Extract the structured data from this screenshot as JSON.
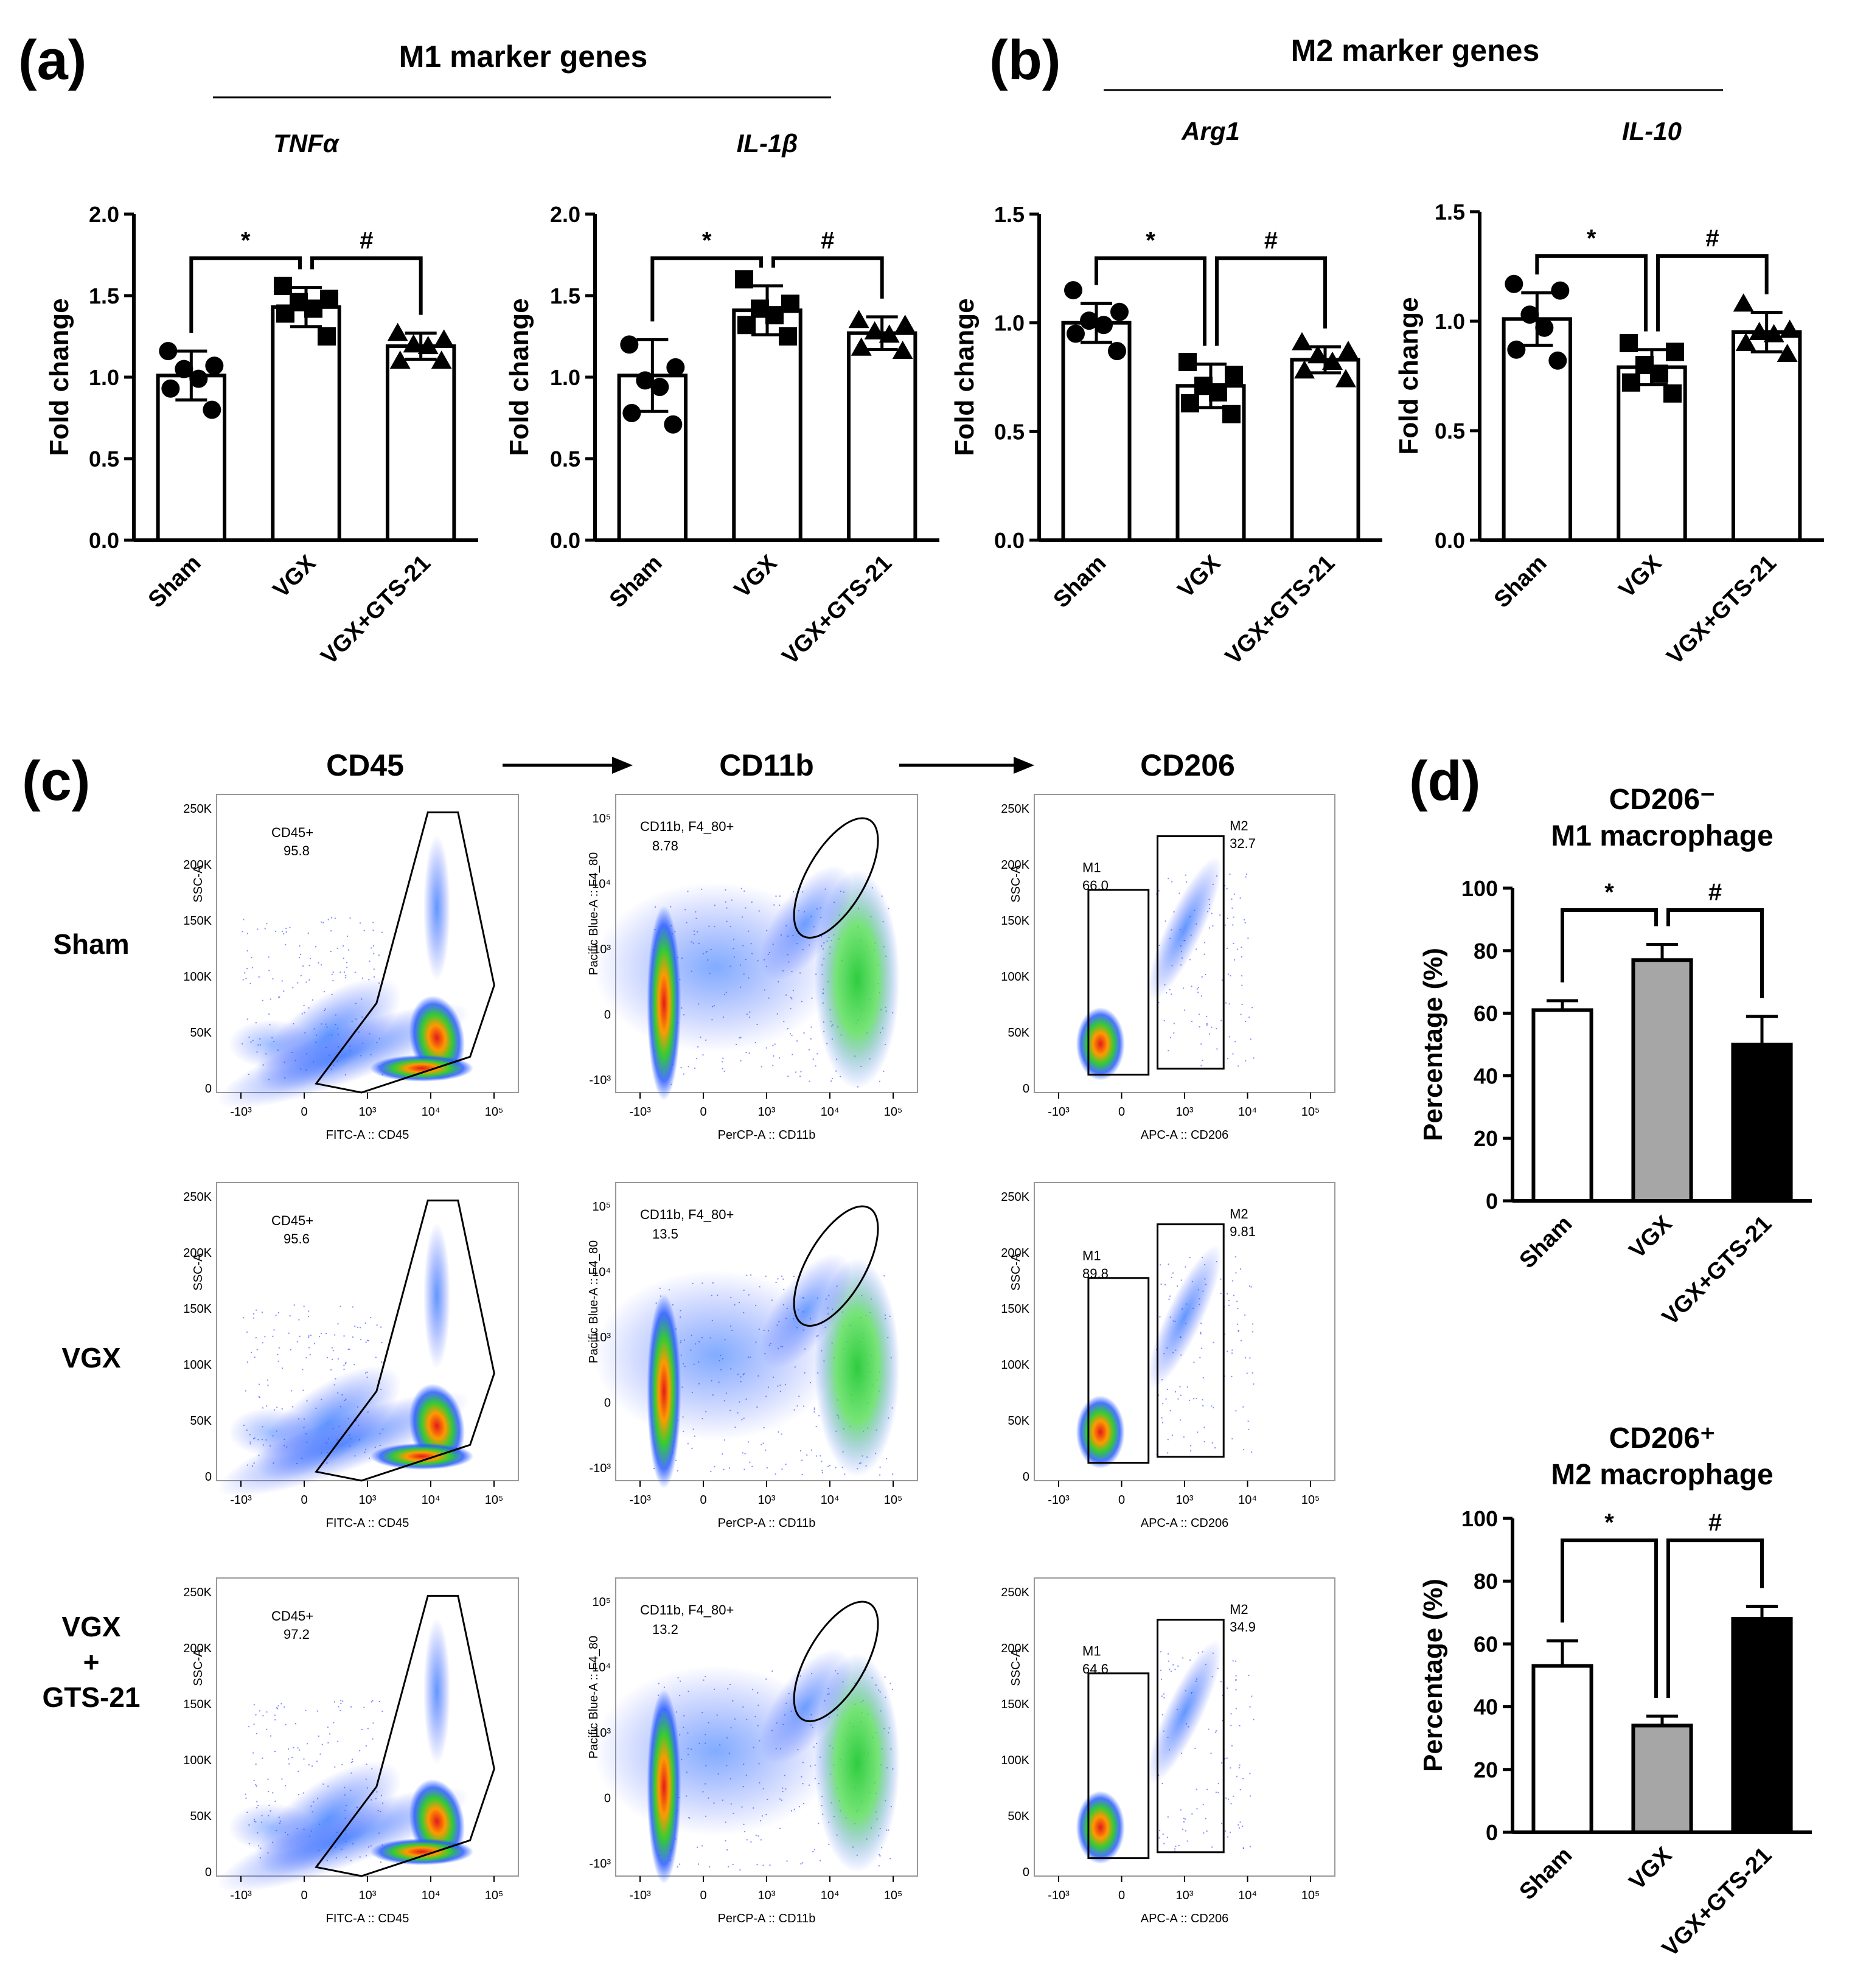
{
  "panel_labels": {
    "a": "(a)",
    "b": "(b)",
    "c": "(c)",
    "d": "(d)"
  },
  "headers": {
    "m1_genes": "M1 marker genes",
    "m2_genes": "M2 marker genes"
  },
  "chart_data": [
    {
      "id": "tnfa",
      "type": "bar",
      "title": "TNFα",
      "ylabel": "Fold change",
      "ylim": [
        0,
        2.0
      ],
      "yticks": [
        "0.0",
        "0.5",
        "1.0",
        "1.5",
        "2.0"
      ],
      "categories": [
        "Sham",
        "VGX",
        "VGX+GTS-21"
      ],
      "values": [
        1.01,
        1.43,
        1.19
      ],
      "errors": [
        0.15,
        0.12,
        0.08
      ],
      "points": [
        [
          1.16,
          1.07,
          1.05,
          0.99,
          0.93,
          0.8
        ],
        [
          1.56,
          1.48,
          1.46,
          1.42,
          1.39,
          1.25
        ],
        [
          1.27,
          1.23,
          1.2,
          1.19,
          1.1,
          1.1
        ]
      ],
      "markers": [
        "circle",
        "square",
        "triangle"
      ],
      "significance": [
        "*",
        "#"
      ]
    },
    {
      "id": "il1b",
      "type": "bar",
      "title": "IL-1β",
      "ylabel": "Fold change",
      "ylim": [
        0,
        2.0
      ],
      "yticks": [
        "0.0",
        "0.5",
        "1.0",
        "1.5",
        "2.0"
      ],
      "categories": [
        "Sham",
        "VGX",
        "VGX+GTS-21"
      ],
      "values": [
        1.01,
        1.41,
        1.27
      ],
      "errors": [
        0.22,
        0.15,
        0.1
      ],
      "points": [
        [
          1.2,
          1.06,
          0.98,
          0.94,
          0.78,
          0.71
        ],
        [
          1.6,
          1.45,
          1.42,
          1.38,
          1.32,
          1.25
        ],
        [
          1.35,
          1.32,
          1.28,
          1.26,
          1.18,
          1.16
        ]
      ],
      "markers": [
        "circle",
        "square",
        "triangle"
      ],
      "significance": [
        "*",
        "#"
      ]
    },
    {
      "id": "arg1",
      "type": "bar",
      "title": "Arg1",
      "ylabel": "Fold change",
      "ylim": [
        0,
        1.5
      ],
      "yticks": [
        "0.0",
        "0.5",
        "1.0",
        "1.5"
      ],
      "categories": [
        "Sham",
        "VGX",
        "VGX+GTS-21"
      ],
      "values": [
        1.0,
        0.71,
        0.83
      ],
      "errors": [
        0.09,
        0.1,
        0.06
      ],
      "points": [
        [
          1.15,
          1.05,
          1.01,
          0.99,
          0.95,
          0.87
        ],
        [
          0.82,
          0.76,
          0.71,
          0.68,
          0.63,
          0.58
        ],
        [
          0.91,
          0.87,
          0.85,
          0.82,
          0.78,
          0.74
        ]
      ],
      "markers": [
        "circle",
        "square",
        "triangle"
      ],
      "significance": [
        "*",
        "#"
      ]
    },
    {
      "id": "il10",
      "type": "bar",
      "title": "IL-10",
      "ylabel": "Fold change",
      "ylim": [
        0,
        1.5
      ],
      "yticks": [
        "0.0",
        "0.5",
        "1.0",
        "1.5"
      ],
      "categories": [
        "Sham",
        "VGX",
        "VGX+GTS-21"
      ],
      "values": [
        1.01,
        0.79,
        0.95
      ],
      "errors": [
        0.12,
        0.08,
        0.09
      ],
      "points": [
        [
          1.17,
          1.14,
          1.03,
          0.97,
          0.87,
          0.82
        ],
        [
          0.9,
          0.86,
          0.8,
          0.76,
          0.72,
          0.67
        ],
        [
          1.08,
          0.96,
          0.95,
          0.94,
          0.9,
          0.85
        ]
      ],
      "markers": [
        "circle",
        "square",
        "triangle"
      ],
      "significance": [
        "*",
        "#"
      ]
    },
    {
      "id": "m1pct",
      "type": "bar",
      "title": "CD206⁻",
      "subtitle": "M1 macrophage",
      "ylabel": "Percentage (%)",
      "ylim": [
        0,
        100
      ],
      "yticks": [
        "0",
        "20",
        "40",
        "60",
        "80",
        "100"
      ],
      "categories": [
        "Sham",
        "VGX",
        "VGX+GTS-21"
      ],
      "values": [
        61,
        77,
        50
      ],
      "errors": [
        3,
        5,
        9
      ],
      "fills": [
        "#ffffff",
        "#a6a6a6",
        "#000000"
      ],
      "significance": [
        "*",
        "#"
      ]
    },
    {
      "id": "m2pct",
      "type": "bar",
      "title": "CD206⁺",
      "subtitle": "M2 macrophage",
      "ylabel": "Percentage (%)",
      "ylim": [
        0,
        100
      ],
      "yticks": [
        "0",
        "20",
        "40",
        "60",
        "80",
        "100"
      ],
      "categories": [
        "Sham",
        "VGX",
        "VGX+GTS-21"
      ],
      "values": [
        53,
        34,
        68
      ],
      "errors": [
        8,
        3,
        4
      ],
      "fills": [
        "#ffffff",
        "#a6a6a6",
        "#000000"
      ],
      "significance": [
        "*",
        "#"
      ]
    }
  ],
  "flow": {
    "column_titles": [
      "CD45",
      "CD11b",
      "CD206"
    ],
    "row_labels": [
      "Sham",
      "VGX",
      "VGX\n+\nGTS-21"
    ],
    "axis_labels": {
      "cd45_x": "FITC-A :: CD45",
      "cd45_y": "SSC-A",
      "cd11b_x": "PerCP-A :: CD11b",
      "cd11b_y": "Pacific Blue-A :: F4_80",
      "cd206_x": "APC-A :: CD206",
      "cd206_y": "SSC-A"
    },
    "ssc_ticks": [
      "0",
      "50K",
      "100K",
      "150K",
      "200K",
      "250K"
    ],
    "log_ticks_x": [
      "-10³",
      "0",
      "10³",
      "10⁴",
      "10⁵"
    ],
    "log_ticks_y": [
      "-10³",
      "0",
      "10³",
      "10⁴",
      "10⁵"
    ],
    "gates": {
      "cd45_label": "CD45+",
      "cd11b_label": "CD11b, F4_80+",
      "m1_label": "M1",
      "m2_label": "M2"
    },
    "values": [
      {
        "cd45": "95.8",
        "cd11b": "8.78",
        "m1": "66.0",
        "m2": "32.7"
      },
      {
        "cd45": "95.6",
        "cd11b": "13.5",
        "m1": "89.8",
        "m2": "9.81"
      },
      {
        "cd45": "97.2",
        "cd11b": "13.2",
        "m1": "64.6",
        "m2": "34.9"
      }
    ]
  }
}
